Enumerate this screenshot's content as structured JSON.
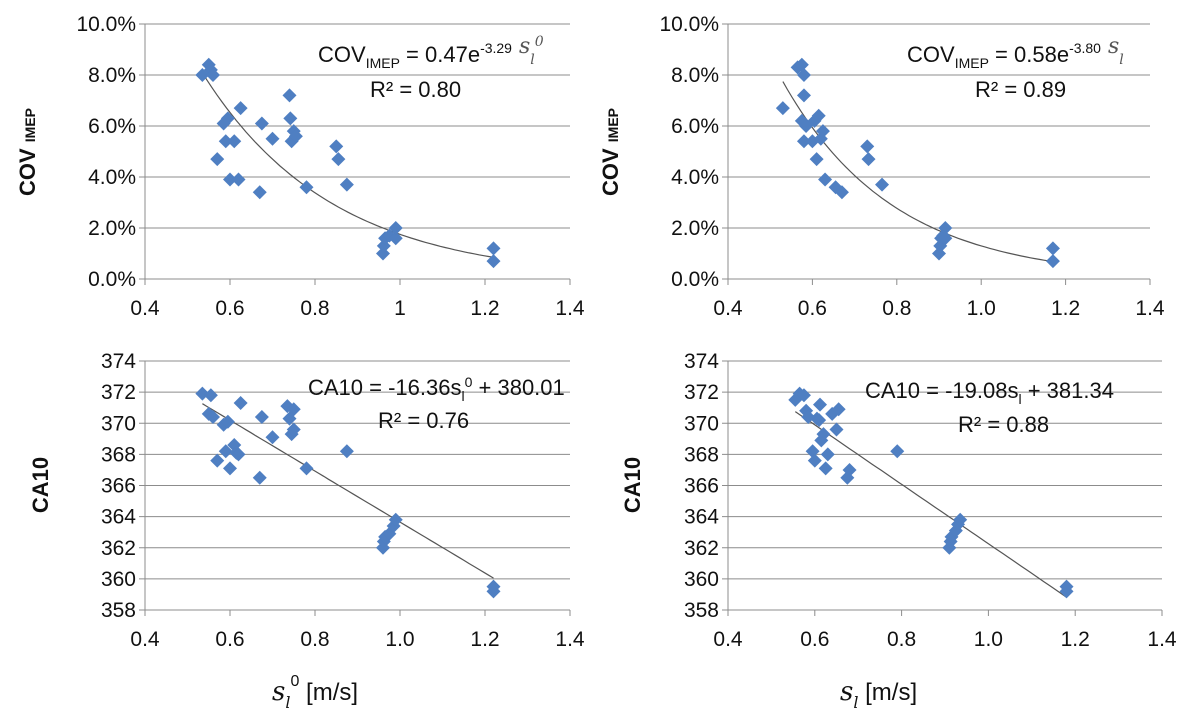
{
  "chart_data": [
    {
      "type": "scatter",
      "panel": "top-left",
      "ylabel": "COV",
      "ylabel_sub": "IMEP",
      "xlim": [
        0.4,
        1.4
      ],
      "ylim": [
        0,
        0.1
      ],
      "xticks": [
        "0.4",
        "0.6",
        "0.8",
        "1",
        "1.2",
        "1.4"
      ],
      "yticks": [
        "0.0%",
        "2.0%",
        "4.0%",
        "6.0%",
        "8.0%",
        "10.0%"
      ],
      "trend": {
        "kind": "exp",
        "a": 0.47,
        "b": -3.29
      },
      "equation": {
        "lhs": "COV",
        "lhs_sub": "IMEP",
        "mid": " = 0.47e",
        "exp": "-3.29",
        "var": "s",
        "var_sub": "l",
        "var_sup": "0"
      },
      "r2": "R² = 0.80",
      "points": [
        [
          0.535,
          0.08
        ],
        [
          0.55,
          0.084
        ],
        [
          0.555,
          0.082
        ],
        [
          0.56,
          0.08
        ],
        [
          0.57,
          0.047
        ],
        [
          0.585,
          0.061
        ],
        [
          0.59,
          0.054
        ],
        [
          0.595,
          0.063
        ],
        [
          0.6,
          0.039
        ],
        [
          0.61,
          0.054
        ],
        [
          0.62,
          0.039
        ],
        [
          0.625,
          0.067
        ],
        [
          0.67,
          0.034
        ],
        [
          0.675,
          0.061
        ],
        [
          0.7,
          0.055
        ],
        [
          0.74,
          0.072
        ],
        [
          0.742,
          0.063
        ],
        [
          0.745,
          0.054
        ],
        [
          0.75,
          0.058
        ],
        [
          0.755,
          0.056
        ],
        [
          0.78,
          0.036
        ],
        [
          0.85,
          0.052
        ],
        [
          0.855,
          0.047
        ],
        [
          0.875,
          0.037
        ],
        [
          0.96,
          0.01
        ],
        [
          0.962,
          0.013
        ],
        [
          0.965,
          0.016
        ],
        [
          0.975,
          0.017
        ],
        [
          0.99,
          0.016
        ],
        [
          0.99,
          0.02
        ],
        [
          1.22,
          0.007
        ],
        [
          1.22,
          0.012
        ]
      ]
    },
    {
      "type": "scatter",
      "panel": "top-right",
      "ylabel": "COV",
      "ylabel_sub": "IMEP",
      "xlim": [
        0.4,
        1.4
      ],
      "ylim": [
        0,
        0.1
      ],
      "xticks": [
        "0.4",
        "0.6",
        "0.8",
        "1.0",
        "1.2",
        "1.4"
      ],
      "yticks": [
        "0.0%",
        "2.0%",
        "4.0%",
        "6.0%",
        "8.0%",
        "10.0%"
      ],
      "trend": {
        "kind": "exp",
        "a": 0.58,
        "b": -3.8
      },
      "equation": {
        "lhs": "COV",
        "lhs_sub": "IMEP",
        "mid": " = 0.58e",
        "exp": "-3.80",
        "var": "s",
        "var_sub": "l",
        "var_sup": ""
      },
      "r2": "R² = 0.89",
      "points": [
        [
          0.53,
          0.067
        ],
        [
          0.565,
          0.083
        ],
        [
          0.575,
          0.084
        ],
        [
          0.58,
          0.08
        ],
        [
          0.58,
          0.072
        ],
        [
          0.575,
          0.062
        ],
        [
          0.58,
          0.054
        ],
        [
          0.585,
          0.06
        ],
        [
          0.6,
          0.054
        ],
        [
          0.605,
          0.062
        ],
        [
          0.61,
          0.047
        ],
        [
          0.615,
          0.064
        ],
        [
          0.62,
          0.055
        ],
        [
          0.625,
          0.058
        ],
        [
          0.63,
          0.039
        ],
        [
          0.655,
          0.036
        ],
        [
          0.67,
          0.034
        ],
        [
          0.73,
          0.052
        ],
        [
          0.733,
          0.047
        ],
        [
          0.765,
          0.037
        ],
        [
          0.9,
          0.01
        ],
        [
          0.903,
          0.013
        ],
        [
          0.905,
          0.016
        ],
        [
          0.91,
          0.017
        ],
        [
          0.915,
          0.02
        ],
        [
          0.915,
          0.016
        ],
        [
          1.17,
          0.007
        ],
        [
          1.17,
          0.012
        ]
      ]
    },
    {
      "type": "scatter",
      "panel": "bottom-left",
      "ylabel": "CA10",
      "ylabel_sub": "",
      "xlabel": {
        "var": "s",
        "sub": "l",
        "sup": "0",
        "unit": " [m/s]"
      },
      "xlim": [
        0.4,
        1.4
      ],
      "ylim": [
        358,
        374
      ],
      "xticks": [
        "0.4",
        "0.6",
        "0.8",
        "1.0",
        "1.2",
        "1.4"
      ],
      "yticks": [
        "358",
        "360",
        "362",
        "364",
        "366",
        "368",
        "370",
        "372",
        "374"
      ],
      "trend": {
        "kind": "linear",
        "m": -16.36,
        "c": 380.01
      },
      "equation": {
        "text": "CA10 = -16.36s",
        "sub": "l",
        "sup": "0",
        "rest": " + 380.01"
      },
      "r2": "R² = 0.76",
      "points": [
        [
          0.535,
          371.9
        ],
        [
          0.55,
          370.6
        ],
        [
          0.555,
          371.8
        ],
        [
          0.56,
          370.4
        ],
        [
          0.57,
          367.6
        ],
        [
          0.585,
          369.9
        ],
        [
          0.59,
          368.2
        ],
        [
          0.595,
          370.1
        ],
        [
          0.6,
          367.1
        ],
        [
          0.61,
          368.6
        ],
        [
          0.615,
          368.1
        ],
        [
          0.62,
          368.0
        ],
        [
          0.625,
          371.3
        ],
        [
          0.67,
          366.5
        ],
        [
          0.675,
          370.4
        ],
        [
          0.7,
          369.1
        ],
        [
          0.735,
          371.1
        ],
        [
          0.74,
          370.3
        ],
        [
          0.745,
          369.3
        ],
        [
          0.75,
          369.6
        ],
        [
          0.75,
          370.9
        ],
        [
          0.78,
          367.1
        ],
        [
          0.875,
          368.2
        ],
        [
          0.96,
          362.0
        ],
        [
          0.962,
          362.4
        ],
        [
          0.965,
          362.7
        ],
        [
          0.975,
          362.9
        ],
        [
          0.985,
          363.4
        ],
        [
          0.99,
          363.8
        ],
        [
          1.22,
          359.2
        ],
        [
          1.22,
          359.5
        ]
      ]
    },
    {
      "type": "scatter",
      "panel": "bottom-right",
      "ylabel": "CA10",
      "ylabel_sub": "",
      "xlabel": {
        "var": "s",
        "sub": "l",
        "sup": "",
        "unit": " [m/s]"
      },
      "xlim": [
        0.4,
        1.4
      ],
      "ylim": [
        358,
        374
      ],
      "xticks": [
        "0.4",
        "0.6",
        "0.8",
        "1.0",
        "1.2",
        "1.4"
      ],
      "yticks": [
        "358",
        "360",
        "362",
        "364",
        "366",
        "368",
        "370",
        "372",
        "374"
      ],
      "trend": {
        "kind": "linear",
        "m": -19.08,
        "c": 381.34
      },
      "equation": {
        "text": "CA10 = -19.08s",
        "sub": "l",
        "sup": "",
        "rest": " + 381.34"
      },
      "r2": "R² = 0.88",
      "points": [
        [
          0.555,
          371.5
        ],
        [
          0.565,
          371.9
        ],
        [
          0.575,
          371.8
        ],
        [
          0.58,
          370.8
        ],
        [
          0.585,
          370.4
        ],
        [
          0.595,
          368.2
        ],
        [
          0.6,
          367.6
        ],
        [
          0.605,
          370.3
        ],
        [
          0.61,
          370.2
        ],
        [
          0.612,
          371.2
        ],
        [
          0.615,
          368.9
        ],
        [
          0.62,
          369.3
        ],
        [
          0.625,
          367.1
        ],
        [
          0.63,
          368.0
        ],
        [
          0.64,
          370.6
        ],
        [
          0.65,
          369.6
        ],
        [
          0.655,
          370.9
        ],
        [
          0.675,
          366.5
        ],
        [
          0.68,
          367.0
        ],
        [
          0.79,
          368.2
        ],
        [
          0.91,
          362.0
        ],
        [
          0.913,
          362.4
        ],
        [
          0.915,
          362.7
        ],
        [
          0.925,
          363.1
        ],
        [
          0.93,
          363.5
        ],
        [
          0.935,
          363.8
        ],
        [
          1.18,
          359.2
        ],
        [
          1.18,
          359.5
        ]
      ]
    }
  ]
}
